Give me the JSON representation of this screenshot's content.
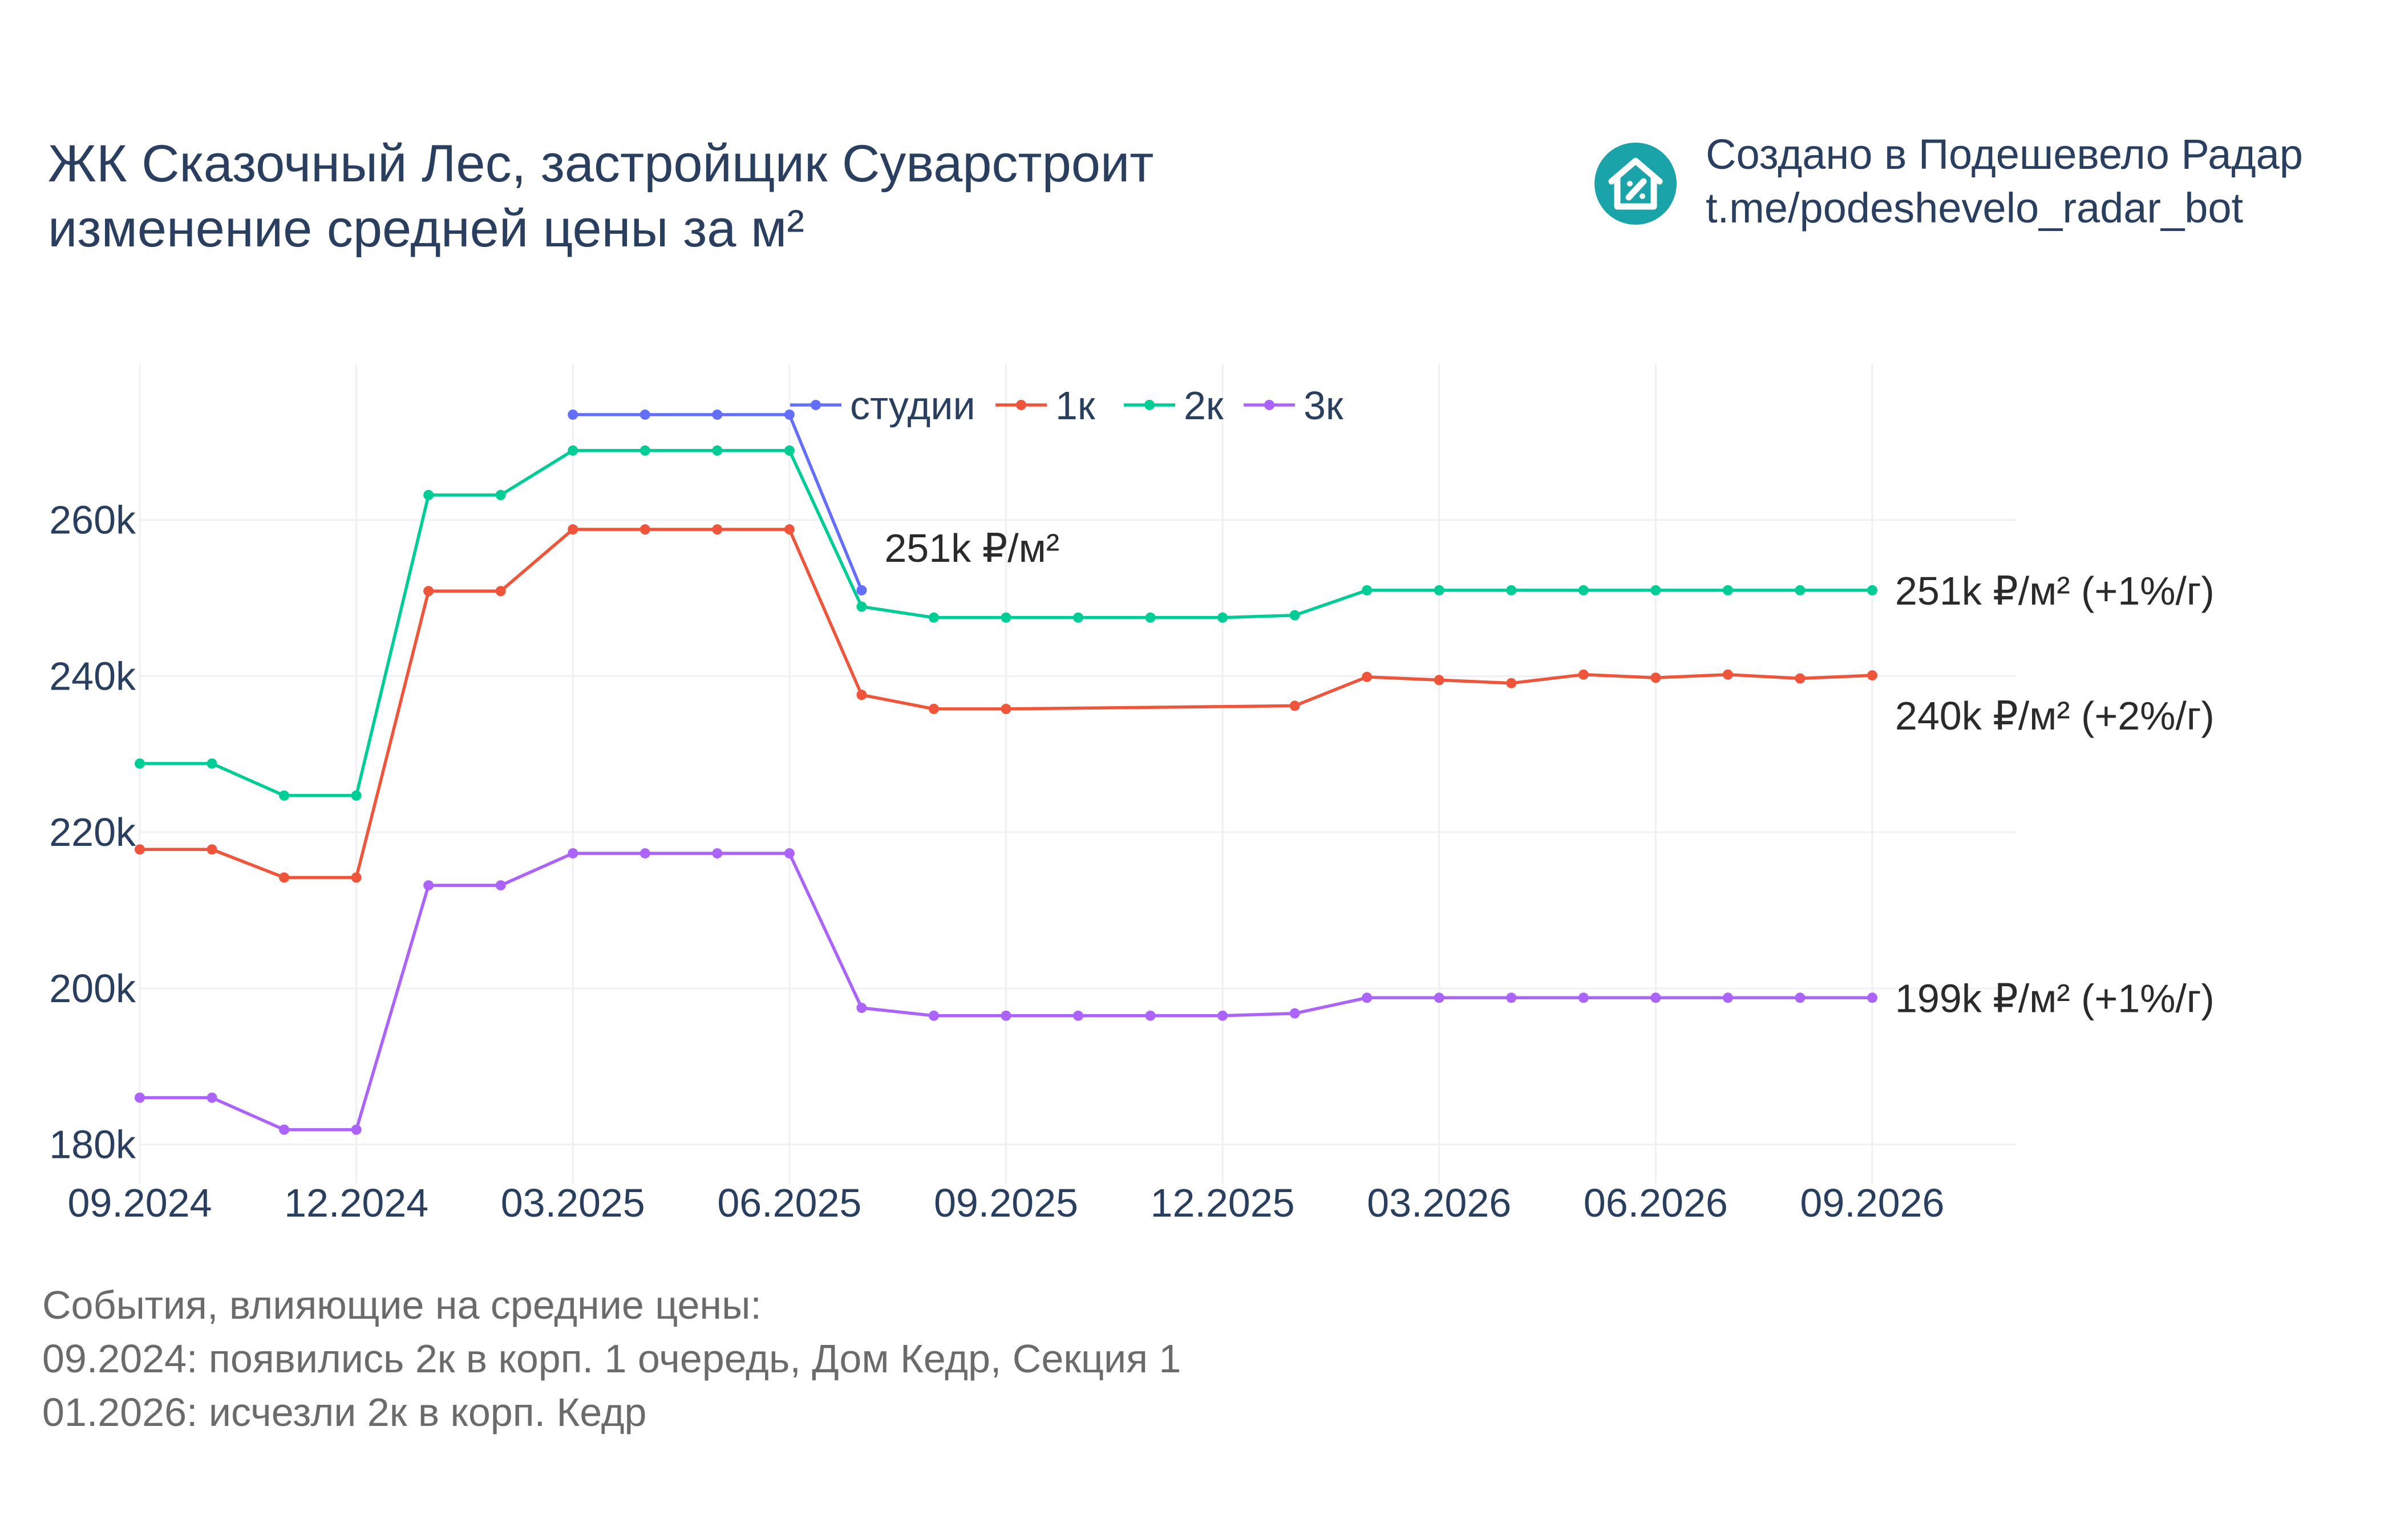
{
  "title": {
    "line1": "ЖК Сказочный Лес, застройщик Суварстроит",
    "line2": "изменение средней цены за м²"
  },
  "credit": {
    "line1": "Создано в Подешевело Радар",
    "line2": "t.me/podeshevelo_radar_bot",
    "logo_icon": "house-percent-icon",
    "logo_color": "#1aa3a8"
  },
  "notes": {
    "heading": "События, влияющие на средние цены:",
    "items": [
      "09.2024: появились 2к в корп. 1 очередь, Дом Кедр, Секция 1",
      "01.2026: исчезли 2к в корп. Кедр"
    ]
  },
  "chart_data": {
    "type": "line",
    "x_ticks": [
      "09.2024",
      "12.2024",
      "03.2025",
      "06.2025",
      "09.2025",
      "12.2025",
      "03.2026",
      "06.2026",
      "09.2026"
    ],
    "y_ticks": [
      "180k",
      "200k",
      "220k",
      "240k",
      "260k"
    ],
    "xlim": [
      "2024-09",
      "2026-11"
    ],
    "ylim": [
      175000,
      280000
    ],
    "grid": true,
    "legend_position": "top",
    "series": [
      {
        "name": "студии",
        "color": "#636efa",
        "points": [
          [
            "2025-03",
            273500
          ],
          [
            "2025-04",
            273500
          ],
          [
            "2025-05",
            273500
          ],
          [
            "2025-06",
            273500
          ],
          [
            "2025-07",
            251000
          ]
        ]
      },
      {
        "name": "1к",
        "color": "#ef553b",
        "points": [
          [
            "2024-09",
            217800
          ],
          [
            "2024-10",
            217800
          ],
          [
            "2024-11",
            214200
          ],
          [
            "2024-12",
            214200
          ],
          [
            "2025-01",
            250900
          ],
          [
            "2025-02",
            250900
          ],
          [
            "2025-03",
            258800
          ],
          [
            "2025-04",
            258800
          ],
          [
            "2025-05",
            258800
          ],
          [
            "2025-06",
            258800
          ],
          [
            "2025-07",
            237600
          ],
          [
            "2025-08",
            235800
          ],
          [
            "2025-09",
            235800
          ],
          [
            "2026-01",
            236200
          ],
          [
            "2026-02",
            239900
          ],
          [
            "2026-03",
            239500
          ],
          [
            "2026-04",
            239100
          ],
          [
            "2026-05",
            240200
          ],
          [
            "2026-06",
            239800
          ],
          [
            "2026-07",
            240200
          ],
          [
            "2026-08",
            239700
          ],
          [
            "2026-09",
            240100
          ]
        ]
      },
      {
        "name": "2к",
        "color": "#00cc96",
        "points": [
          [
            "2024-09",
            228800
          ],
          [
            "2024-10",
            228800
          ],
          [
            "2024-11",
            224700
          ],
          [
            "2024-12",
            224700
          ],
          [
            "2025-01",
            263200
          ],
          [
            "2025-02",
            263200
          ],
          [
            "2025-03",
            268900
          ],
          [
            "2025-04",
            268900
          ],
          [
            "2025-05",
            268900
          ],
          [
            "2025-06",
            268900
          ],
          [
            "2025-07",
            248900
          ],
          [
            "2025-08",
            247500
          ],
          [
            "2025-09",
            247500
          ],
          [
            "2025-10",
            247500
          ],
          [
            "2025-11",
            247500
          ],
          [
            "2025-12",
            247500
          ],
          [
            "2026-01",
            247800
          ],
          [
            "2026-02",
            251000
          ],
          [
            "2026-03",
            251000
          ],
          [
            "2026-04",
            251000
          ],
          [
            "2026-05",
            251000
          ],
          [
            "2026-06",
            251000
          ],
          [
            "2026-07",
            251000
          ],
          [
            "2026-08",
            251000
          ],
          [
            "2026-09",
            251000
          ]
        ]
      },
      {
        "name": "3к",
        "color": "#ab63fa",
        "points": [
          [
            "2024-09",
            186000
          ],
          [
            "2024-10",
            186000
          ],
          [
            "2024-11",
            181900
          ],
          [
            "2024-12",
            181900
          ],
          [
            "2025-01",
            213200
          ],
          [
            "2025-02",
            213200
          ],
          [
            "2025-03",
            217300
          ],
          [
            "2025-04",
            217300
          ],
          [
            "2025-05",
            217300
          ],
          [
            "2025-06",
            217300
          ],
          [
            "2025-07",
            197500
          ],
          [
            "2025-08",
            196500
          ],
          [
            "2025-09",
            196500
          ],
          [
            "2025-10",
            196500
          ],
          [
            "2025-11",
            196500
          ],
          [
            "2025-12",
            196500
          ],
          [
            "2026-01",
            196800
          ],
          [
            "2026-02",
            198800
          ],
          [
            "2026-03",
            198800
          ],
          [
            "2026-04",
            198800
          ],
          [
            "2026-05",
            198800
          ],
          [
            "2026-06",
            198800
          ],
          [
            "2026-07",
            198800
          ],
          [
            "2026-08",
            198800
          ],
          [
            "2026-09",
            198800
          ]
        ]
      }
    ],
    "annotations": [
      {
        "series": "студии",
        "text": "251k ₽/м²"
      },
      {
        "series": "2к",
        "text": "251k ₽/м² (+1%/г)"
      },
      {
        "series": "1к",
        "text": "240k ₽/м² (+2%/г)"
      },
      {
        "series": "3к",
        "text": "199k ₽/м² (+1%/г)"
      }
    ]
  }
}
